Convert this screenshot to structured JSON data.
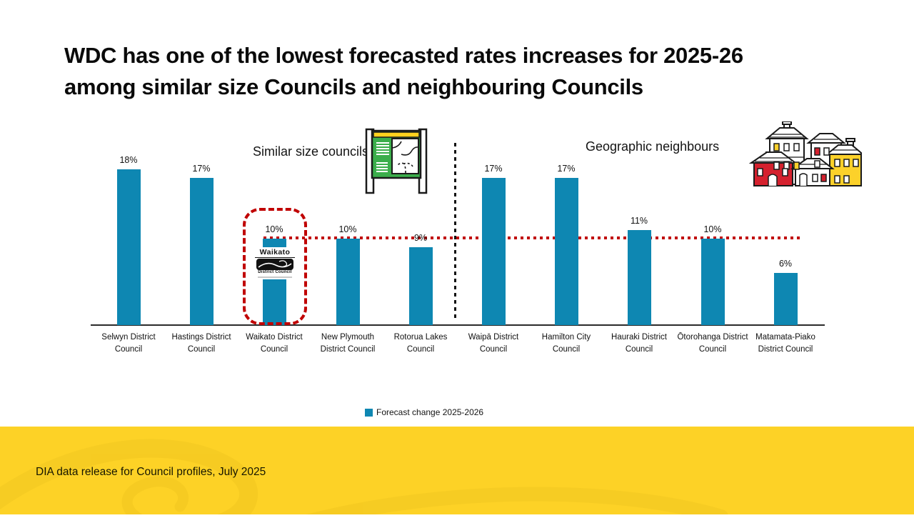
{
  "slide": {
    "title_line1": "WDC has one of the lowest forecasted rates increases for 2025-26",
    "title_line2": "among similar size Councils and neighbouring Councils",
    "footer": "DIA data release for Council profiles, July 2025"
  },
  "annotations": {
    "left_group_label": "Similar size councils",
    "right_group_label": "Geographic neighbours",
    "highlighted_council": "Waikato District Council"
  },
  "waikato_logo": {
    "line1": "Waikato",
    "line2": "District Council"
  },
  "legend": {
    "label": "Forecast change 2025-2026",
    "color": "#0E87B2"
  },
  "icons": {
    "left_group": "map-signboard-icon",
    "right_group": "houses-icon"
  },
  "colors": {
    "bar": "#0E87B2",
    "highlight_red": "#C00000",
    "band_yellow": "#FDD226",
    "signboard_green": "#3BAE4B",
    "house_red": "#D5212E",
    "house_yellow": "#FCD12A"
  },
  "chart_data": {
    "type": "bar",
    "title": "",
    "xlabel": "",
    "ylabel": "",
    "unit": "%",
    "ylim": [
      0,
      20
    ],
    "grid": false,
    "legend_position": "bottom-center",
    "categories": [
      "Selwyn District Council",
      "Hastings District Council",
      "Waikato District Council",
      "New Plymouth District Council",
      "Rotorua Lakes Council",
      "Waipā District Council",
      "Hamilton City Council",
      "Hauraki District Council",
      "Ōtorohanga District Council",
      "Matamata-Piako District Council"
    ],
    "series": [
      {
        "name": "Forecast change 2025-2026",
        "values": [
          18,
          17,
          10,
          10,
          9,
          17,
          17,
          11,
          10,
          6
        ]
      }
    ],
    "data_labels": [
      "18%",
      "17%",
      "10%",
      "10%",
      "9%",
      "17%",
      "17%",
      "11%",
      "10%",
      "6%"
    ],
    "groups": [
      {
        "label": "Similar size councils",
        "categories": [
          "Selwyn District Council",
          "Hastings District Council",
          "Waikato District Council",
          "New Plymouth District Council",
          "Rotorua Lakes Council"
        ]
      },
      {
        "label": "Geographic neighbours",
        "categories": [
          "Waipā District Council",
          "Hamilton City Council",
          "Hauraki District Council",
          "Ōtorohanga District Council",
          "Matamata-Piako District Council"
        ]
      }
    ],
    "reference_line": {
      "value": 10,
      "style": "red dotted horizontal"
    },
    "highlight": {
      "category": "Waikato District Council",
      "style": "red dashed rounded box"
    }
  }
}
